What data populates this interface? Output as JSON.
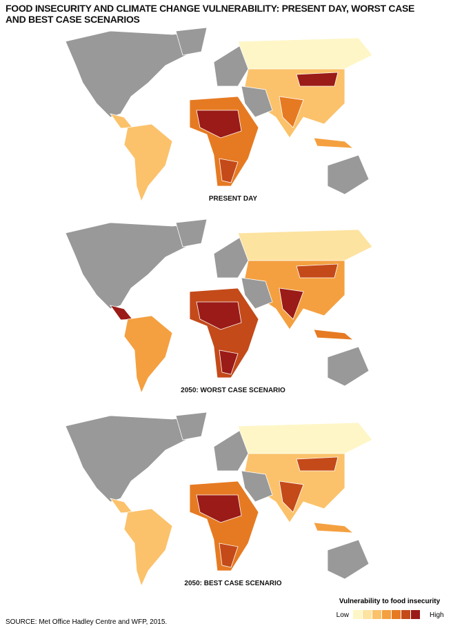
{
  "title": "FOOD INSECURITY AND CLIMATE CHANGE VULNERABILITY: PRESENT DAY, WORST CASE AND BEST CASE SCENARIOS",
  "maps": [
    {
      "label": "PRESENT DAY"
    },
    {
      "label": "2050: WORST CASE SCENARIO"
    },
    {
      "label": "2050: BEST CASE SCENARIO"
    }
  ],
  "legend": {
    "title": "Vulnerability to food insecurity",
    "low": "Low",
    "high": "High",
    "colors": [
      "#fef6c6",
      "#fde3a0",
      "#fbc26b",
      "#f4a040",
      "#e67a22",
      "#c44a1a",
      "#9a1b17"
    ]
  },
  "source": "SOURCE: Met Office Hadley Centre and WFP, 2015."
}
